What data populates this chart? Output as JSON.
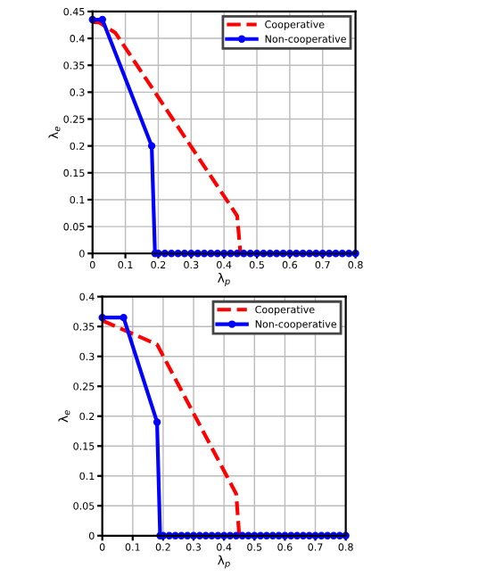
{
  "chart_data": [
    {
      "type": "line",
      "xlabel": "λ$_{p}$",
      "ylabel": "λ$_{e}$",
      "xlim": [
        0,
        0.8
      ],
      "ylim": [
        0,
        0.45
      ],
      "xticks": [
        0,
        0.1,
        0.2,
        0.3,
        0.4,
        0.5,
        0.6,
        0.7,
        0.8
      ],
      "yticks": [
        0,
        0.05,
        0.1,
        0.15,
        0.2,
        0.25,
        0.3,
        0.35,
        0.4,
        0.45
      ],
      "grid": true,
      "legend": "top right",
      "series": [
        {
          "name": "Cooperative",
          "color": "#ff0000",
          "line_style": "dashed",
          "marker": "none",
          "x": [
            0,
            0.02,
            0.07,
            0.44,
            0.45,
            0.8
          ],
          "values": [
            0.43,
            0.43,
            0.41,
            0.07,
            0,
            0
          ]
        },
        {
          "name": "Non-cooperative",
          "color": "#0000ff",
          "line_style": "solid",
          "marker": "circle",
          "x": [
            0,
            0.03,
            0.18,
            0.19,
            0.2,
            0.22,
            0.24,
            0.26,
            0.28,
            0.3,
            0.32,
            0.34,
            0.36,
            0.38,
            0.4,
            0.42,
            0.44,
            0.46,
            0.48,
            0.5,
            0.52,
            0.54,
            0.56,
            0.58,
            0.6,
            0.62,
            0.64,
            0.66,
            0.68,
            0.7,
            0.72,
            0.74,
            0.76,
            0.78,
            0.8
          ],
          "values": [
            0.435,
            0.435,
            0.2,
            0,
            0,
            0,
            0,
            0,
            0,
            0,
            0,
            0,
            0,
            0,
            0,
            0,
            0,
            0,
            0,
            0,
            0,
            0,
            0,
            0,
            0,
            0,
            0,
            0,
            0,
            0,
            0,
            0,
            0,
            0,
            0
          ]
        }
      ]
    },
    {
      "type": "line",
      "xlabel": "λ$_{p}$",
      "ylabel": "λ$_{e}$",
      "xlim": [
        0,
        0.8
      ],
      "ylim": [
        0,
        0.4
      ],
      "xticks": [
        0,
        0.1,
        0.2,
        0.3,
        0.4,
        0.5,
        0.6,
        0.7,
        0.8
      ],
      "yticks": [
        0,
        0.05,
        0.1,
        0.15,
        0.2,
        0.25,
        0.3,
        0.35,
        0.4
      ],
      "grid": true,
      "legend": "top right",
      "series": [
        {
          "name": "Cooperative",
          "color": "#ff0000",
          "line_style": "dashed",
          "marker": "none",
          "x": [
            0,
            0.18,
            0.44,
            0.45,
            0.8
          ],
          "values": [
            0.36,
            0.32,
            0.07,
            0,
            0
          ]
        },
        {
          "name": "Non-cooperative",
          "color": "#0000ff",
          "line_style": "solid",
          "marker": "circle",
          "x": [
            0,
            0.07,
            0.18,
            0.19,
            0.2,
            0.22,
            0.24,
            0.26,
            0.28,
            0.3,
            0.32,
            0.34,
            0.36,
            0.38,
            0.4,
            0.42,
            0.44,
            0.46,
            0.48,
            0.5,
            0.52,
            0.54,
            0.56,
            0.58,
            0.6,
            0.62,
            0.64,
            0.66,
            0.68,
            0.7,
            0.72,
            0.74,
            0.76,
            0.78,
            0.8
          ],
          "values": [
            0.365,
            0.365,
            0.19,
            0,
            0,
            0,
            0,
            0,
            0,
            0,
            0,
            0,
            0,
            0,
            0,
            0,
            0,
            0,
            0,
            0,
            0,
            0,
            0,
            0,
            0,
            0,
            0,
            0,
            0,
            0,
            0,
            0,
            0,
            0,
            0
          ]
        }
      ]
    }
  ]
}
